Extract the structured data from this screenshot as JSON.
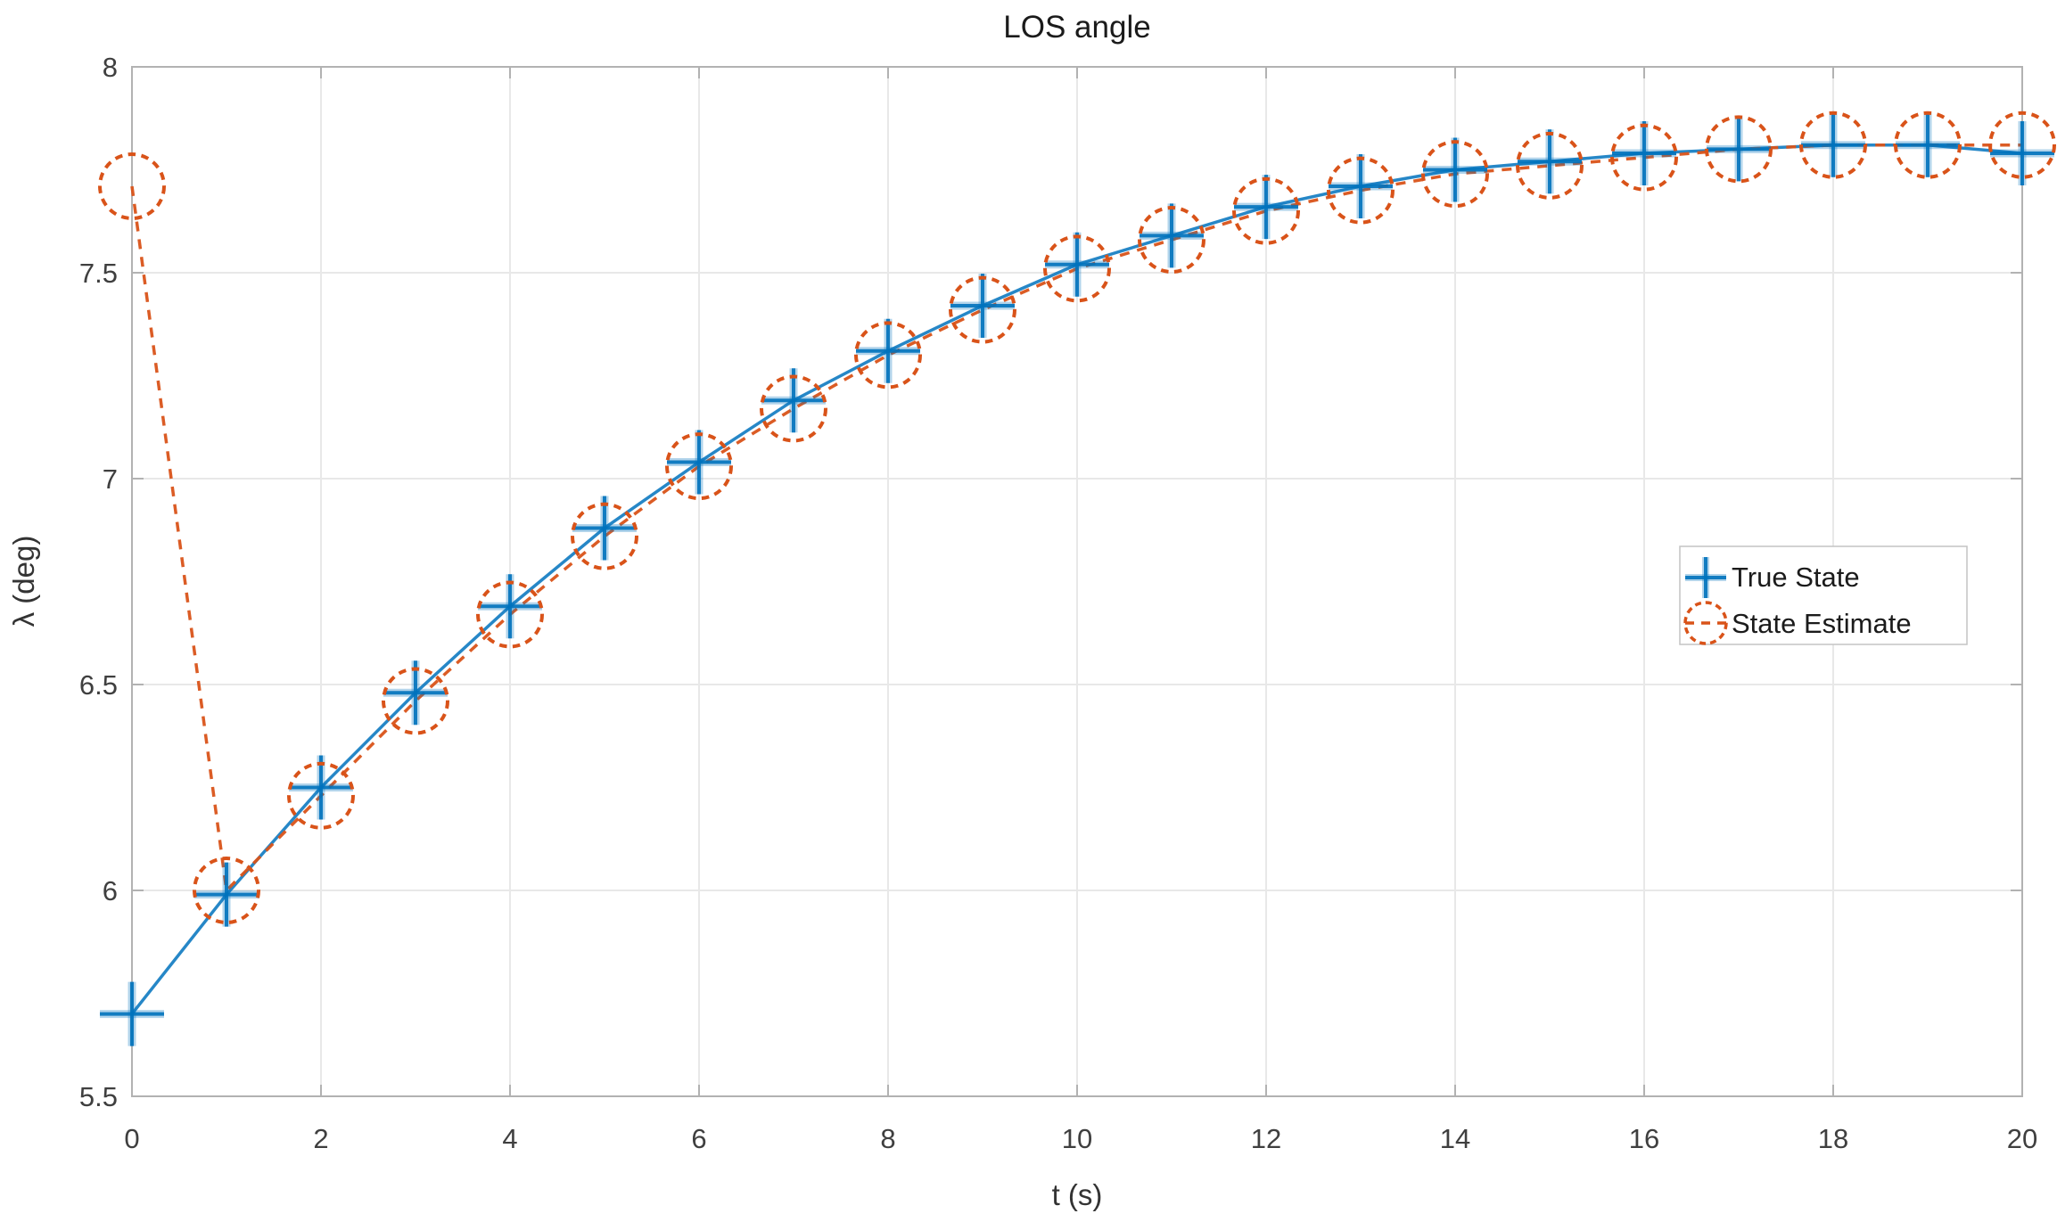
{
  "figure": {
    "background": "#ffffff"
  },
  "chart_data": {
    "type": "line",
    "title": "LOS angle",
    "xlabel": "t (s)",
    "ylabel": "λ (deg)",
    "xlim": [
      0,
      20
    ],
    "ylim": [
      5.5,
      8
    ],
    "xticks": [
      0,
      2,
      4,
      6,
      8,
      10,
      12,
      14,
      16,
      18,
      20
    ],
    "yticks": [
      5.5,
      6,
      6.5,
      7,
      7.5,
      8
    ],
    "grid": true,
    "x": [
      0,
      1,
      2,
      3,
      4,
      5,
      6,
      7,
      8,
      9,
      10,
      11,
      12,
      13,
      14,
      15,
      16,
      17,
      18,
      19,
      20
    ],
    "series": [
      {
        "name": "True State",
        "marker": "plus",
        "line_style": "solid",
        "color": "#0072BD",
        "values": [
          5.7,
          5.99,
          6.25,
          6.48,
          6.69,
          6.88,
          7.04,
          7.19,
          7.31,
          7.42,
          7.52,
          7.59,
          7.66,
          7.71,
          7.75,
          7.77,
          7.79,
          7.8,
          7.81,
          7.81,
          7.79
        ]
      },
      {
        "name": "State Estimate",
        "marker": "circle",
        "line_style": "dashed",
        "color": "#D95319",
        "values": [
          7.71,
          6.0,
          6.23,
          6.46,
          6.67,
          6.86,
          7.03,
          7.17,
          7.3,
          7.41,
          7.51,
          7.58,
          7.65,
          7.7,
          7.74,
          7.76,
          7.78,
          7.8,
          7.81,
          7.81,
          7.81
        ]
      }
    ],
    "legend": {
      "position": "right-middle",
      "entries": [
        "True State",
        "State Estimate"
      ]
    },
    "colors": {
      "true_state": "#0072BD",
      "state_estimate": "#D95319",
      "grid": "#e8e8e8",
      "axis": "#b2b2b2",
      "tick_text": "#3f3f3f"
    }
  }
}
